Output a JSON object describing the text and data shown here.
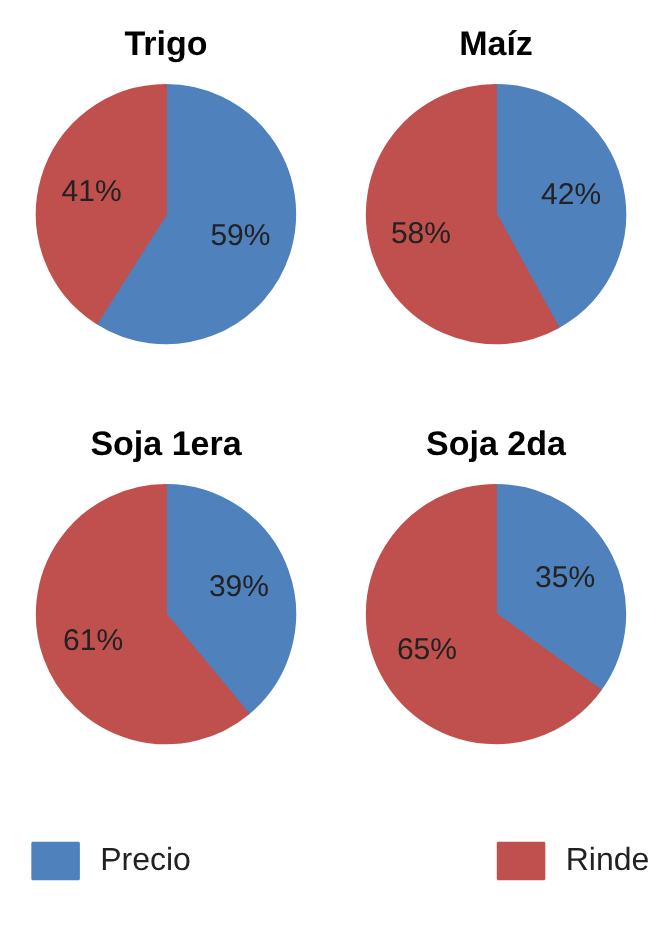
{
  "chart_data": [
    {
      "type": "pie",
      "title": "Trigo",
      "categories": [
        "Precio",
        "Rinde"
      ],
      "values": [
        59,
        41
      ],
      "colors": [
        "#4f81bd",
        "#c0504d"
      ],
      "value_labels": [
        "59%",
        "41%"
      ],
      "legend": "bottom"
    },
    {
      "type": "pie",
      "title": "Maíz",
      "values": [
        42,
        58
      ],
      "colors": [
        "#4f81bd",
        "#c0504d"
      ],
      "value_labels": [
        "42%",
        "58%"
      ]
    },
    {
      "type": "pie",
      "title": "Soja 1era",
      "values": [
        39,
        61
      ],
      "colors": [
        "#4f81bd",
        "#c0504d"
      ],
      "value_labels": [
        "39%",
        "61%"
      ]
    },
    {
      "type": "pie",
      "title": "Soja 2da",
      "values": [
        35,
        65
      ],
      "colors": [
        "#4f81bd",
        "#c0504d"
      ],
      "value_labels": [
        "35%",
        "65%"
      ]
    }
  ]
}
